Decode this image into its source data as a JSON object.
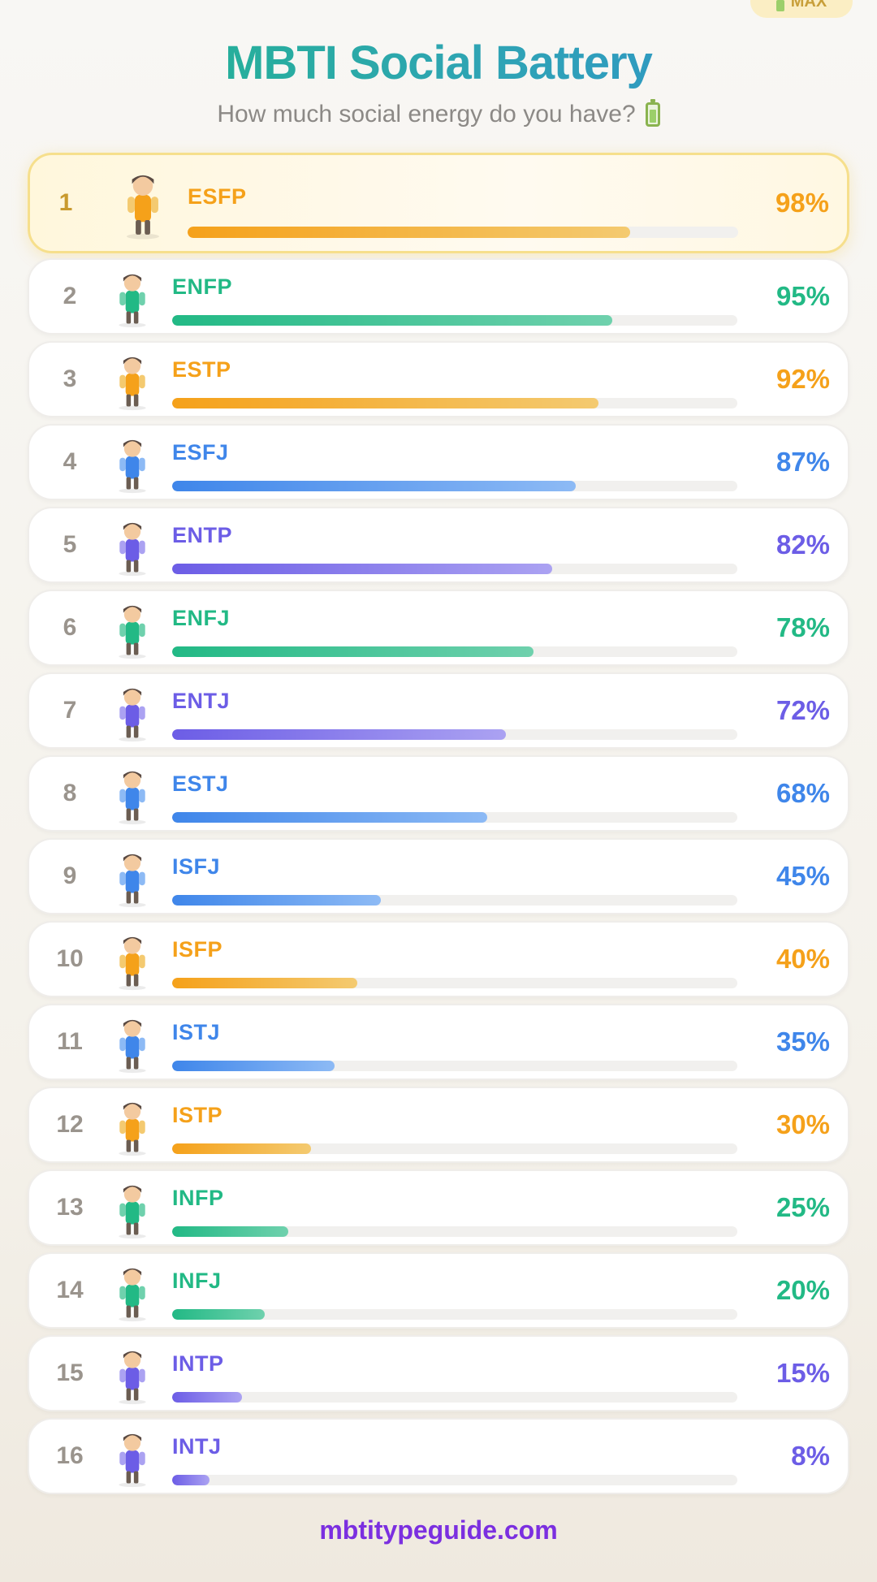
{
  "badge": {
    "label": "MAX"
  },
  "header": {
    "title": "MBTI Social Battery",
    "subtitle": "How much social energy do you have?"
  },
  "colors": {
    "orange": [
      "#f5a11a",
      "#f4ca70"
    ],
    "green": [
      "#22b985",
      "#6fd1ad"
    ],
    "blue": [
      "#3f86ea",
      "#8dbaf5"
    ],
    "purple": [
      "#6c5de6",
      "#aba2f2"
    ]
  },
  "chart_data": {
    "type": "bar",
    "title": "MBTI Social Battery",
    "subtitle": "How much social energy do you have?",
    "xlim": [
      0,
      100
    ],
    "categories": [
      "ESFP",
      "ENFP",
      "ESTP",
      "ESFJ",
      "ENTP",
      "ENFJ",
      "ENTJ",
      "ESTJ",
      "ISFJ",
      "ISFP",
      "ISTJ",
      "ISTP",
      "INFP",
      "INFJ",
      "INTP",
      "INTJ"
    ],
    "values": [
      98,
      95,
      92,
      87,
      82,
      78,
      72,
      68,
      45,
      40,
      35,
      30,
      25,
      20,
      15,
      8
    ],
    "items": [
      {
        "rank": "1",
        "type": "ESFP",
        "value": 98,
        "label": "98%",
        "color": "orange",
        "avatar": "character-icon"
      },
      {
        "rank": "2",
        "type": "ENFP",
        "value": 95,
        "label": "95%",
        "color": "green",
        "avatar": "character-icon"
      },
      {
        "rank": "3",
        "type": "ESTP",
        "value": 92,
        "label": "92%",
        "color": "orange",
        "avatar": "character-icon"
      },
      {
        "rank": "4",
        "type": "ESFJ",
        "value": 87,
        "label": "87%",
        "color": "blue",
        "avatar": "character-icon"
      },
      {
        "rank": "5",
        "type": "ENTP",
        "value": 82,
        "label": "82%",
        "color": "purple",
        "avatar": "character-icon"
      },
      {
        "rank": "6",
        "type": "ENFJ",
        "value": 78,
        "label": "78%",
        "color": "green",
        "avatar": "character-icon"
      },
      {
        "rank": "7",
        "type": "ENTJ",
        "value": 72,
        "label": "72%",
        "color": "purple",
        "avatar": "character-icon"
      },
      {
        "rank": "8",
        "type": "ESTJ",
        "value": 68,
        "label": "68%",
        "color": "blue",
        "avatar": "character-icon"
      },
      {
        "rank": "9",
        "type": "ISFJ",
        "value": 45,
        "label": "45%",
        "color": "blue",
        "avatar": "character-icon"
      },
      {
        "rank": "10",
        "type": "ISFP",
        "value": 40,
        "label": "40%",
        "color": "orange",
        "avatar": "character-icon"
      },
      {
        "rank": "11",
        "type": "ISTJ",
        "value": 35,
        "label": "35%",
        "color": "blue",
        "avatar": "character-icon"
      },
      {
        "rank": "12",
        "type": "ISTP",
        "value": 30,
        "label": "30%",
        "color": "orange",
        "avatar": "character-icon"
      },
      {
        "rank": "13",
        "type": "INFP",
        "value": 25,
        "label": "25%",
        "color": "green",
        "avatar": "character-icon"
      },
      {
        "rank": "14",
        "type": "INFJ",
        "value": 20,
        "label": "20%",
        "color": "green",
        "avatar": "character-icon"
      },
      {
        "rank": "15",
        "type": "INTP",
        "value": 15,
        "label": "15%",
        "color": "purple",
        "avatar": "character-icon"
      },
      {
        "rank": "16",
        "type": "INTJ",
        "value": 8,
        "label": "8%",
        "color": "purple",
        "avatar": "character-icon"
      }
    ]
  },
  "footer": {
    "site": "mbtitypeguide.com"
  }
}
